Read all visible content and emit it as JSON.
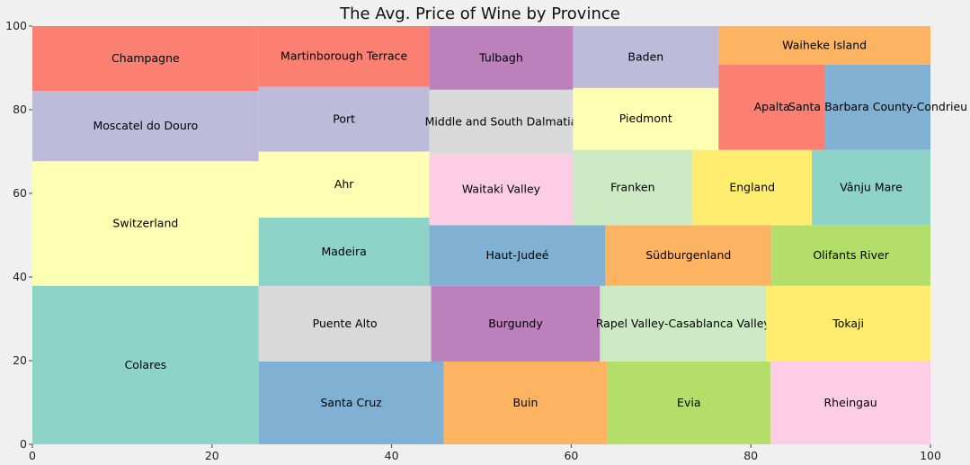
{
  "chart_data": {
    "type": "treemap",
    "title": "The Avg. Price of Wine by Province",
    "xlabel": "",
    "ylabel": "",
    "xlim": [
      0,
      100
    ],
    "ylim": [
      0,
      100
    ],
    "xticks": [
      0,
      20,
      40,
      60,
      80,
      100
    ],
    "yticks": [
      0,
      20,
      40,
      60,
      80,
      100
    ],
    "grid": false,
    "background": "#f0f0f0",
    "tiles": [
      {
        "label": "Colares",
        "x": 0,
        "y": 0,
        "dx": 25.2,
        "dy": 37.9,
        "color": "#8dd3c7"
      },
      {
        "label": "Switzerland",
        "x": 0,
        "y": 37.9,
        "dx": 25.2,
        "dy": 29.8,
        "color": "#ffffb3"
      },
      {
        "label": "Moscatel do Douro",
        "x": 0,
        "y": 67.7,
        "dx": 25.2,
        "dy": 16.8,
        "color": "#bebada"
      },
      {
        "label": "Champagne",
        "x": 0,
        "y": 84.5,
        "dx": 25.2,
        "dy": 15.5,
        "color": "#fb8072"
      },
      {
        "label": "Santa Cruz",
        "x": 25.2,
        "y": 0,
        "dx": 20.6,
        "dy": 19.8,
        "color": "#80b1d3"
      },
      {
        "label": "Buin",
        "x": 45.8,
        "y": 0,
        "dx": 18.2,
        "dy": 19.8,
        "color": "#fdb462"
      },
      {
        "label": "Evia",
        "x": 64.0,
        "y": 0,
        "dx": 18.2,
        "dy": 19.8,
        "color": "#b3de69"
      },
      {
        "label": "Rheingau",
        "x": 82.2,
        "y": 0,
        "dx": 17.8,
        "dy": 19.8,
        "color": "#fccde5"
      },
      {
        "label": "Puente Alto",
        "x": 25.2,
        "y": 19.8,
        "dx": 19.2,
        "dy": 18.1,
        "color": "#d9d9d9"
      },
      {
        "label": "Burgundy",
        "x": 44.4,
        "y": 19.8,
        "dx": 18.8,
        "dy": 18.1,
        "color": "#bc80bd"
      },
      {
        "label": "Rapel Valley-Casablanca Valley",
        "x": 63.2,
        "y": 19.8,
        "dx": 18.5,
        "dy": 18.1,
        "color": "#ccebc5"
      },
      {
        "label": "Tokaji",
        "x": 81.7,
        "y": 19.8,
        "dx": 18.3,
        "dy": 18.1,
        "color": "#ffed6f"
      },
      {
        "label": "Madeira",
        "x": 25.2,
        "y": 37.9,
        "dx": 19.0,
        "dy": 16.3,
        "color": "#8dd3c7"
      },
      {
        "label": "Ahr",
        "x": 25.2,
        "y": 54.2,
        "dx": 19.0,
        "dy": 15.8,
        "color": "#ffffb3"
      },
      {
        "label": "Port",
        "x": 25.2,
        "y": 70.0,
        "dx": 19.0,
        "dy": 15.5,
        "color": "#bebada"
      },
      {
        "label": "Martinborough Terrace",
        "x": 25.2,
        "y": 85.5,
        "dx": 19.0,
        "dy": 14.5,
        "color": "#fb8072"
      },
      {
        "label": "Haut-Judeé",
        "x": 44.2,
        "y": 37.9,
        "dx": 19.6,
        "dy": 14.5,
        "color": "#80b1d3"
      },
      {
        "label": "Südburgenland",
        "x": 63.8,
        "y": 37.9,
        "dx": 18.5,
        "dy": 14.5,
        "color": "#fdb462"
      },
      {
        "label": "Olifants River",
        "x": 82.3,
        "y": 37.9,
        "dx": 17.7,
        "dy": 14.5,
        "color": "#b3de69"
      },
      {
        "label": "Waitaki Valley",
        "x": 44.2,
        "y": 52.4,
        "dx": 16.0,
        "dy": 17.1,
        "color": "#fccde5"
      },
      {
        "label": "Middle and South Dalmatia",
        "x": 44.2,
        "y": 69.5,
        "dx": 16.0,
        "dy": 15.3,
        "color": "#d9d9d9"
      },
      {
        "label": "Tulbagh",
        "x": 44.2,
        "y": 84.8,
        "dx": 16.0,
        "dy": 15.2,
        "color": "#bc80bd"
      },
      {
        "label": "Franken",
        "x": 60.2,
        "y": 52.4,
        "dx": 13.3,
        "dy": 18.0,
        "color": "#ccebc5"
      },
      {
        "label": "England",
        "x": 73.5,
        "y": 52.4,
        "dx": 13.3,
        "dy": 18.0,
        "color": "#ffed6f"
      },
      {
        "label": "Vânju Mare",
        "x": 86.8,
        "y": 52.4,
        "dx": 13.2,
        "dy": 18.0,
        "color": "#8dd3c7"
      },
      {
        "label": "Piedmont",
        "x": 60.2,
        "y": 70.4,
        "dx": 16.2,
        "dy": 14.8,
        "color": "#ffffb3"
      },
      {
        "label": "Baden",
        "x": 60.2,
        "y": 85.2,
        "dx": 16.2,
        "dy": 14.8,
        "color": "#bebada"
      },
      {
        "label": "Apalta",
        "x": 76.4,
        "y": 70.4,
        "dx": 11.9,
        "dy": 20.4,
        "color": "#fb8072"
      },
      {
        "label": "Santa Barbara County-Condrieu",
        "x": 88.3,
        "y": 70.4,
        "dx": 11.7,
        "dy": 20.4,
        "color": "#80b1d3"
      },
      {
        "label": "Waiheke Island",
        "x": 76.4,
        "y": 90.8,
        "dx": 23.6,
        "dy": 9.2,
        "color": "#fdb462"
      }
    ]
  }
}
